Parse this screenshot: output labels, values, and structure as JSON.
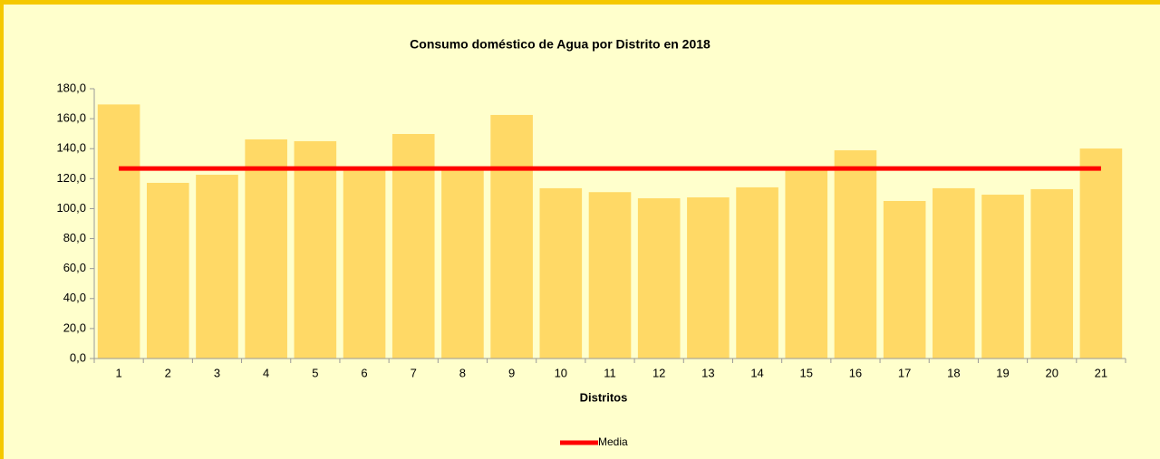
{
  "chart_data": {
    "type": "bar",
    "title": "Consumo doméstico de Agua por Distrito en 2018",
    "x_label": "Distritos",
    "categories": [
      "1",
      "2",
      "3",
      "4",
      "5",
      "6",
      "7",
      "8",
      "9",
      "10",
      "11",
      "12",
      "13",
      "14",
      "15",
      "16",
      "17",
      "18",
      "19",
      "20",
      "21"
    ],
    "values": [
      169.5,
      117.2,
      122.6,
      146.2,
      145.0,
      125.5,
      149.8,
      126.0,
      162.5,
      113.6,
      111.0,
      106.9,
      107.5,
      114.2,
      126.0,
      138.9,
      105.1,
      113.6,
      109.3,
      113.0,
      140.1
    ],
    "color": "#ffd966",
    "series": [
      {
        "name": "Media",
        "color": "#ff0000",
        "type": "line",
        "values": [
          126.8,
          126.8,
          126.8,
          126.8,
          126.8,
          126.8,
          126.8,
          126.8,
          126.8,
          126.8,
          126.8,
          126.8,
          126.8,
          126.8,
          126.8,
          126.8,
          126.8,
          126.8,
          126.8,
          126.8,
          126.8
        ]
      }
    ],
    "ylim": [
      0,
      180
    ],
    "yticks": [
      {
        "value": 0,
        "label": "0,0"
      },
      {
        "value": 20,
        "label": "20,0"
      },
      {
        "value": 40,
        "label": "40,0"
      },
      {
        "value": 60,
        "label": "60,0"
      },
      {
        "value": 80,
        "label": "80,0"
      },
      {
        "value": 100,
        "label": "100,0"
      },
      {
        "value": 120,
        "label": "120,0"
      },
      {
        "value": 140,
        "label": "140,0"
      },
      {
        "value": 160,
        "label": "160,0"
      },
      {
        "value": 180,
        "label": "180,0"
      }
    ],
    "grid": false,
    "legend": "bottom"
  }
}
